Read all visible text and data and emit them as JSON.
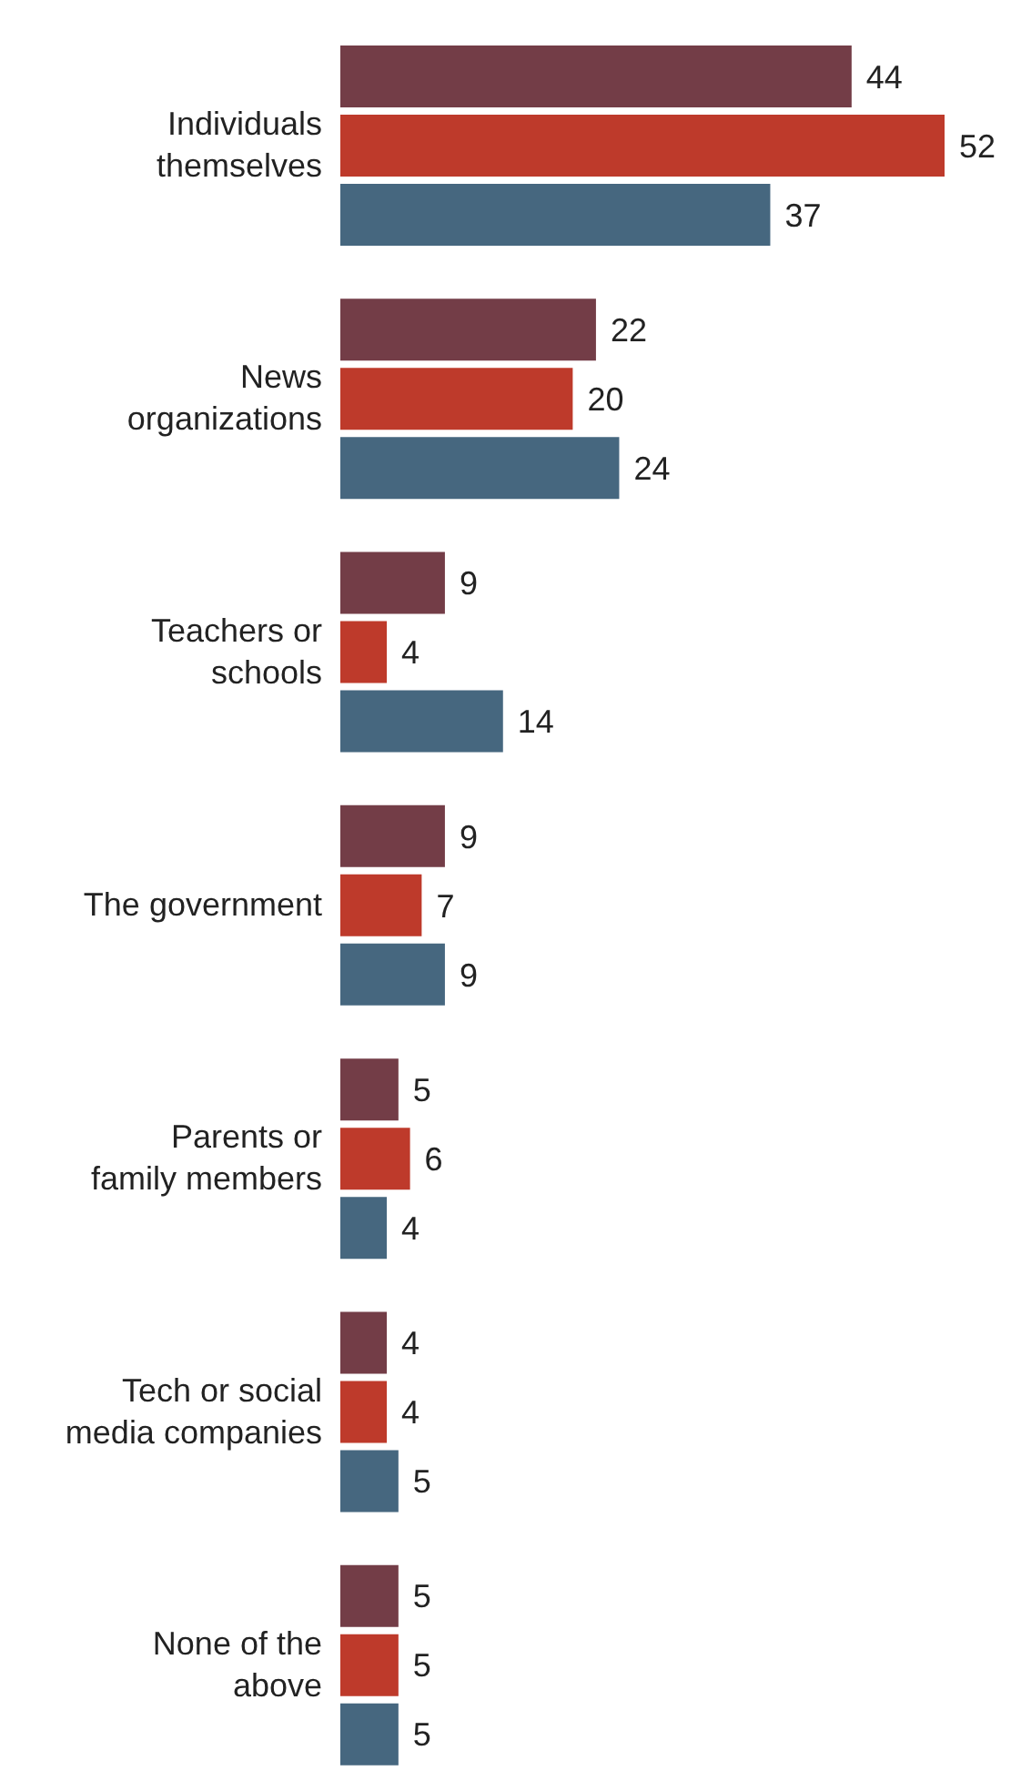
{
  "chart_data": {
    "type": "bar",
    "orientation": "horizontal",
    "categories": [
      "Individuals themselves",
      "News organizations",
      "Teachers or schools",
      "The government",
      "Parents or family members",
      "Tech or social media companies",
      "None of the above"
    ],
    "series": [
      {
        "color": "#733d47",
        "values": [
          44,
          22,
          9,
          9,
          5,
          4,
          5
        ]
      },
      {
        "color": "#be3a2b",
        "values": [
          52,
          20,
          4,
          7,
          6,
          4,
          5
        ]
      },
      {
        "color": "#46677f",
        "values": [
          37,
          24,
          14,
          9,
          4,
          5,
          5
        ]
      }
    ],
    "data_labels": true,
    "legend": false,
    "grid": false
  }
}
